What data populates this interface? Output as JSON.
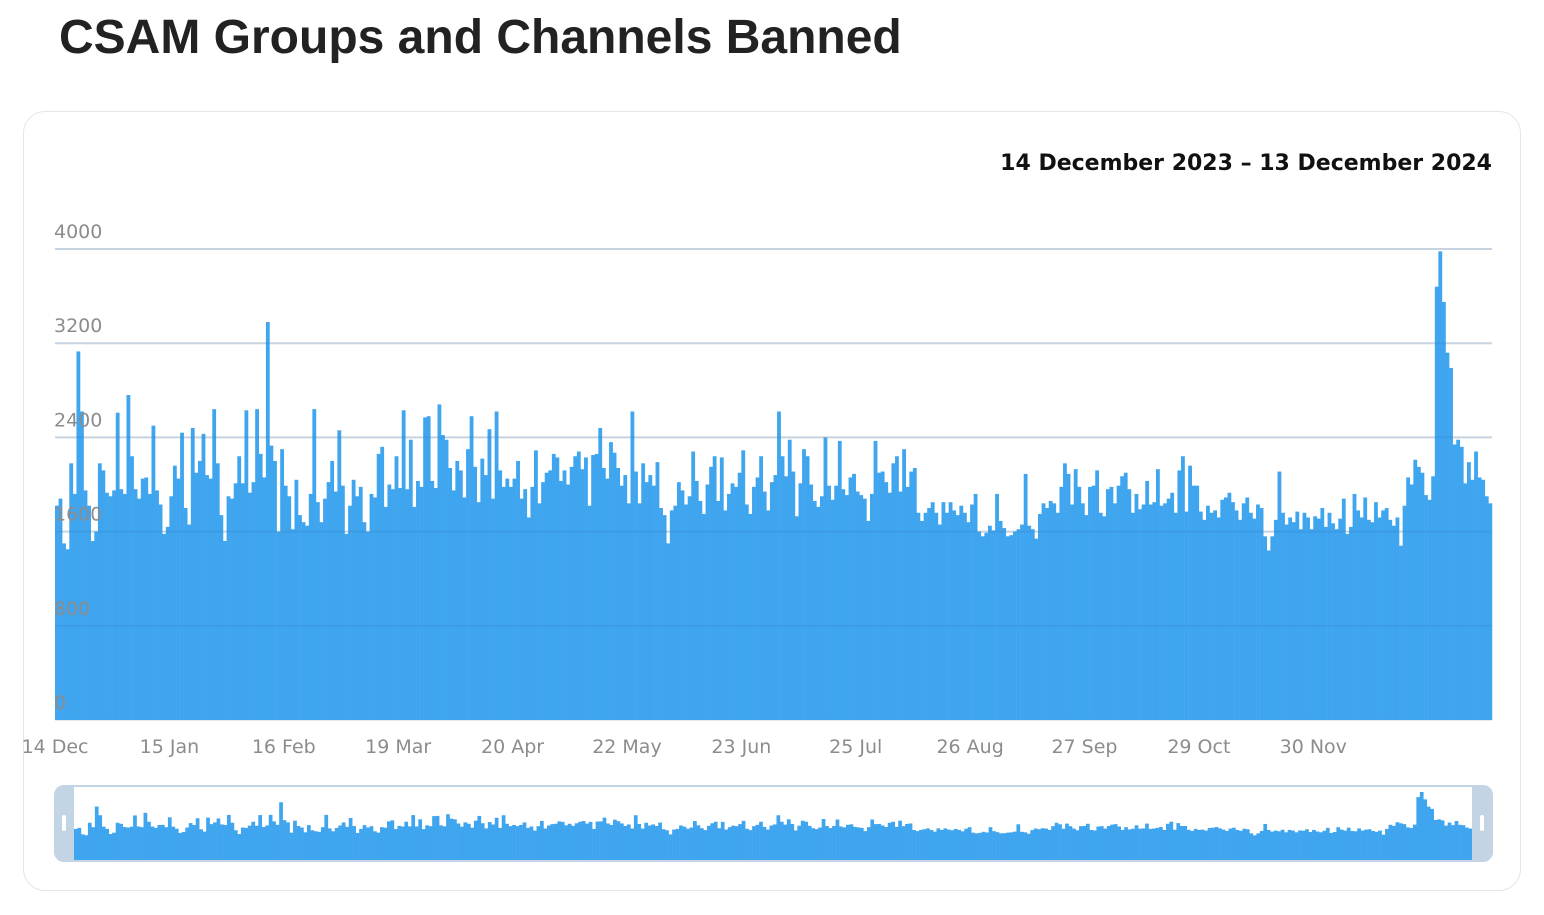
{
  "title": "CSAM Groups and Channels Banned",
  "date_range": "14 December 2023 – 13 December 2024",
  "colors": {
    "bar": "#3fa5ef",
    "grid": "#e9e9e9",
    "navigator_handle": "#c3d4e4"
  },
  "chart_data": {
    "type": "bar",
    "title": "CSAM Groups and Channels Banned",
    "ylim": [
      0,
      4000
    ],
    "yticks": [
      "4000",
      "3200",
      "2400",
      "1600",
      "800",
      "0"
    ],
    "x_ticks": [
      "14 Dec",
      "15 Jan",
      "16 Feb",
      "19 Mar",
      "20 Apr",
      "22 May",
      "23 Jun",
      "25 Jul",
      "26 Aug",
      "27 Sep",
      "29 Oct",
      "30 Nov"
    ],
    "x_start": "2023-12-14",
    "x_end": "2024-12-13",
    "grid": true,
    "navigator": true,
    "values": [
      1820,
      1880,
      1500,
      1450,
      2180,
      1920,
      3130,
      2620,
      1950,
      1820,
      1520,
      1600,
      2180,
      2120,
      1930,
      1900,
      1950,
      2610,
      1960,
      1920,
      2760,
      2240,
      1960,
      1880,
      2050,
      2060,
      1920,
      2500,
      1950,
      1830,
      1580,
      1640,
      1900,
      2160,
      2050,
      2440,
      1800,
      1660,
      2480,
      2100,
      2200,
      2430,
      2080,
      2050,
      2640,
      2180,
      1740,
      1520,
      1900,
      1880,
      2010,
      2240,
      2010,
      2630,
      1930,
      2020,
      2640,
      2260,
      2060,
      3380,
      2330,
      2200,
      1600,
      2300,
      1990,
      1900,
      1620,
      2040,
      1740,
      1680,
      1650,
      1920,
      2640,
      1850,
      1680,
      1880,
      2020,
      2200,
      1940,
      2460,
      1990,
      1580,
      1820,
      2040,
      1900,
      1980,
      1680,
      1600,
      1920,
      1890,
      2260,
      2320,
      1810,
      2000,
      1960,
      2240,
      1970,
      2630,
      1960,
      2380,
      1810,
      2030,
      1980,
      2570,
      2580,
      2030,
      1970,
      2680,
      2420,
      2380,
      2140,
      1950,
      2200,
      2120,
      1890,
      2300,
      2580,
      2150,
      1850,
      2220,
      2080,
      2470,
      1880,
      2620,
      2120,
      1980,
      2050,
      1980,
      2050,
      2200,
      1880,
      1960,
      1720,
      1980,
      2290,
      1840,
      2020,
      2100,
      2120,
      2260,
      2230,
      2030,
      2120,
      2000,
      2150,
      2240,
      2280,
      2130,
      2230,
      1820,
      2250,
      2260,
      2480,
      2140,
      2050,
      2360,
      2270,
      2140,
      1990,
      2080,
      1840,
      2620,
      2110,
      1840,
      2180,
      2020,
      2080,
      1990,
      2190,
      1800,
      1740,
      1500,
      1780,
      1820,
      2020,
      1950,
      1830,
      1900,
      2280,
      2030,
      1860,
      1750,
      2000,
      2150,
      2240,
      1860,
      2230,
      1780,
      1920,
      2010,
      1980,
      2100,
      2290,
      1830,
      1750,
      1980,
      2060,
      2240,
      1940,
      1780,
      2020,
      2080,
      2620,
      2240,
      2070,
      2380,
      2110,
      1730,
      2010,
      2300,
      2240,
      2000,
      1860,
      1810,
      1900,
      2400,
      1990,
      1870,
      1990,
      2370,
      1960,
      1910,
      2060,
      2090,
      1940,
      1910,
      1880,
      1690,
      1920,
      2370,
      2100,
      2110,
      2020,
      1930,
      2180,
      2240,
      1940,
      2300,
      1980,
      2110,
      2140,
      1760,
      1690,
      1760,
      1800,
      1850,
      1760,
      1660,
      1850,
      1760,
      1850,
      1780,
      1740,
      1820,
      1760,
      1680,
      1830,
      1920,
      1600,
      1560,
      1590,
      1650,
      1610,
      1920,
      1690,
      1630,
      1560,
      1570,
      1600,
      1620,
      1660,
      2090,
      1650,
      1620,
      1540,
      1750,
      1840,
      1800,
      1860,
      1840,
      1760,
      1980,
      2180,
      2090,
      1830,
      2130,
      1980,
      1840,
      1740,
      1980,
      1990,
      2120,
      1760,
      1730,
      1960,
      1980,
      1840,
      1990,
      2070,
      2100,
      1960,
      1760,
      1920,
      1790,
      1830,
      2030,
      1830,
      1850,
      2130,
      1820,
      1840,
      1880,
      1930,
      1760,
      2120,
      2240,
      1770,
      2160,
      1990,
      1990,
      1770,
      1700,
      1820,
      1760,
      1780,
      1720,
      1870,
      1890,
      1930,
      1850,
      1780,
      1700,
      1840,
      1890,
      1760,
      1710,
      1830,
      1800,
      1560,
      1440,
      1560,
      1700,
      2110,
      1760,
      1660,
      1720,
      1680,
      1770,
      1620,
      1760,
      1720,
      1620,
      1730,
      1710,
      1800,
      1640,
      1760,
      1670,
      1620,
      1710,
      1880,
      1580,
      1640,
      1920,
      1780,
      1720,
      1890,
      1700,
      1680,
      1850,
      1720,
      1780,
      1800,
      1700,
      1650,
      1720,
      1480,
      1820,
      2060,
      2000,
      2210,
      2150,
      2100,
      1910,
      1870,
      2070,
      3680,
      3980,
      3550,
      3120,
      2990,
      2340,
      2380,
      2320,
      2010,
      2190,
      2040,
      2280,
      2060,
      2040,
      1900,
      1840
    ]
  }
}
